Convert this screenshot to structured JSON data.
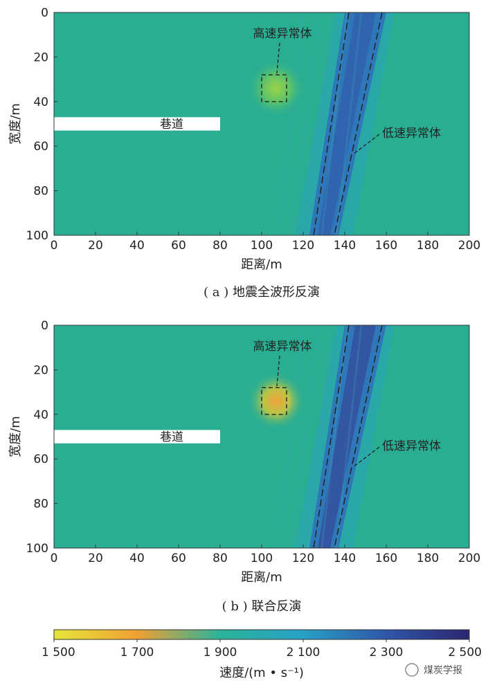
{
  "chart_data": [
    {
      "type": "heatmap",
      "caption": "( a ) 地震全波形反演",
      "xlabel": "距离/m",
      "ylabel": "宽度/m",
      "xlim": [
        0,
        200
      ],
      "ylim": [
        0,
        100
      ],
      "xticks": [
        "0",
        "20",
        "40",
        "60",
        "80",
        "100",
        "120",
        "140",
        "160",
        "180",
        "200"
      ],
      "yticks": [
        "0",
        "20",
        "40",
        "60",
        "80",
        "100"
      ],
      "background_velocity": 2000,
      "roadway": {
        "label": "巷道",
        "x": [
          0,
          80
        ],
        "y": [
          47,
          53
        ]
      },
      "high_velocity_anomaly": {
        "label": "高速异常体",
        "x": [
          100,
          112
        ],
        "y": [
          28,
          40
        ],
        "velocity": 1800
      },
      "low_velocity_anomaly": {
        "label": "低速异常体",
        "top_x": [
          142,
          158
        ],
        "bottom_x": [
          125,
          135
        ],
        "velocity": 2300
      }
    },
    {
      "type": "heatmap",
      "caption": "( b ) 联合反演",
      "xlabel": "距离/m",
      "ylabel": "宽度/m",
      "xlim": [
        0,
        200
      ],
      "ylim": [
        0,
        100
      ],
      "xticks": [
        "0",
        "20",
        "40",
        "60",
        "80",
        "100",
        "120",
        "140",
        "160",
        "180",
        "200"
      ],
      "yticks": [
        "0",
        "20",
        "40",
        "60",
        "80",
        "100"
      ],
      "background_velocity": 2000,
      "roadway": {
        "label": "巷道",
        "x": [
          0,
          80
        ],
        "y": [
          47,
          53
        ]
      },
      "high_velocity_anomaly": {
        "label": "高速异常体",
        "x": [
          100,
          112
        ],
        "y": [
          28,
          40
        ],
        "velocity": 1700
      },
      "low_velocity_anomaly": {
        "label": "低速异常体",
        "top_x": [
          142,
          158
        ],
        "bottom_x": [
          125,
          135
        ],
        "velocity": 2350
      }
    }
  ],
  "colorbar": {
    "label": "速度/(m • s⁻¹)",
    "range": [
      1500,
      2500
    ],
    "ticks": [
      "1 500",
      "1 700",
      "1 900",
      "2 100",
      "2 300",
      "2 500"
    ],
    "colors": [
      "#e8e83c",
      "#f0a030",
      "#2bb59b",
      "#2a9ccf",
      "#2f4fa0",
      "#2a2570"
    ]
  },
  "watermark": "煤炭学报"
}
